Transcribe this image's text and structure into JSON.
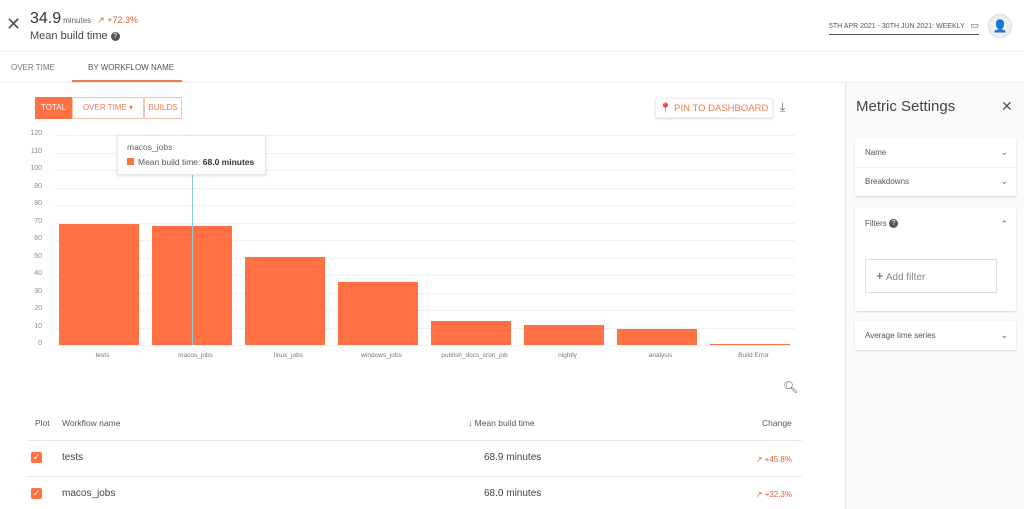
{
  "header": {
    "metric_value": "34.9",
    "metric_unit": "minutes",
    "metric_change": "+72.3%",
    "metric_name": "Mean build time",
    "date_range": "5TH APR 2021 - 30TH JUN 2021: WEEKLY"
  },
  "tabs": [
    {
      "label": "OVER TIME"
    },
    {
      "label": "BY WORKFLOW NAME",
      "active": true
    }
  ],
  "toolbar": {
    "segments": [
      "TOTAL",
      "OVER TIME",
      "BUILDS"
    ],
    "active_segment": "TOTAL",
    "pin_label": "PIN TO DASHBOARD"
  },
  "tooltip": {
    "title": "macos_jobs",
    "label": "Mean build time:",
    "value": "68.0 minutes"
  },
  "chart_data": {
    "type": "bar",
    "categories": [
      "tests",
      "macos_jobs",
      "linux_jobs",
      "windows_jobs",
      "publish_docs_cron_job",
      "nightly",
      "analysis",
      "Build Error"
    ],
    "values": [
      68.9,
      68.0,
      50.2,
      36.0,
      13.5,
      11.3,
      9.1,
      0.6
    ],
    "ylim": [
      0,
      120
    ],
    "yticks": [
      0,
      10,
      20,
      30,
      40,
      50,
      60,
      70,
      80,
      90,
      100,
      110,
      120
    ],
    "grid": true,
    "color": "#ff7043"
  },
  "table": {
    "headers": {
      "plot": "Plot",
      "name": "Workflow name",
      "value": "↓ Mean build time",
      "change": "Change"
    },
    "rows": [
      {
        "name": "tests",
        "value": "68.9 minutes",
        "change": "+45.8%",
        "checked": true
      },
      {
        "name": "macos_jobs",
        "value": "68.0 minutes",
        "change": "+32.3%",
        "checked": true
      }
    ]
  },
  "sidebar": {
    "title": "Metric Settings",
    "sections": [
      "Name",
      "Breakdowns",
      "Filters",
      "Average time series"
    ],
    "add_filter": "Add filter"
  },
  "colors": {
    "accent": "#ff7043",
    "change": "#e0603a"
  }
}
